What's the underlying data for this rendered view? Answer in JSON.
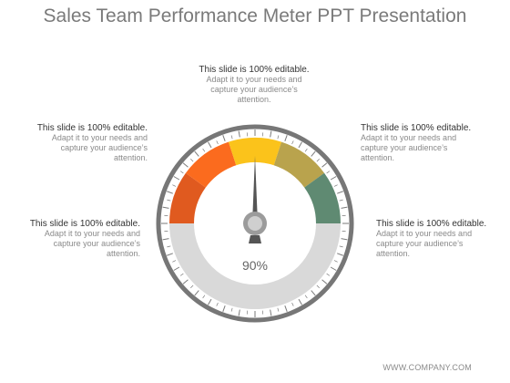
{
  "title": "Sales Team Performance Meter PPT Presentation",
  "callouts": [
    {
      "strong": "This slide is 100% editable.",
      "text": "Adapt it to your needs and capture your audience’s attention."
    },
    {
      "strong": "This slide is 100% editable.",
      "text": "Adapt it to your needs and capture your audience’s attention."
    },
    {
      "strong": "This slide is 100% editable.",
      "text": "Adapt it to your needs and capture your audience’s attention."
    },
    {
      "strong": "This slide is 100% editable.",
      "text": "Adapt it to your needs and capture your audience’s attention."
    },
    {
      "strong": "This slide is 100% editable.",
      "text": "Adapt it to your needs and capture your audience’s attention."
    }
  ],
  "gauge": {
    "value_label": "90%",
    "segment_colors": [
      "#e05a1f",
      "#fb6b1e",
      "#fbc31b",
      "#b9a34d",
      "#5f8a72"
    ],
    "track_color": "#d9d9d9",
    "ring_color": "#777777"
  },
  "footer": "WWW.COMPANY.COM"
}
